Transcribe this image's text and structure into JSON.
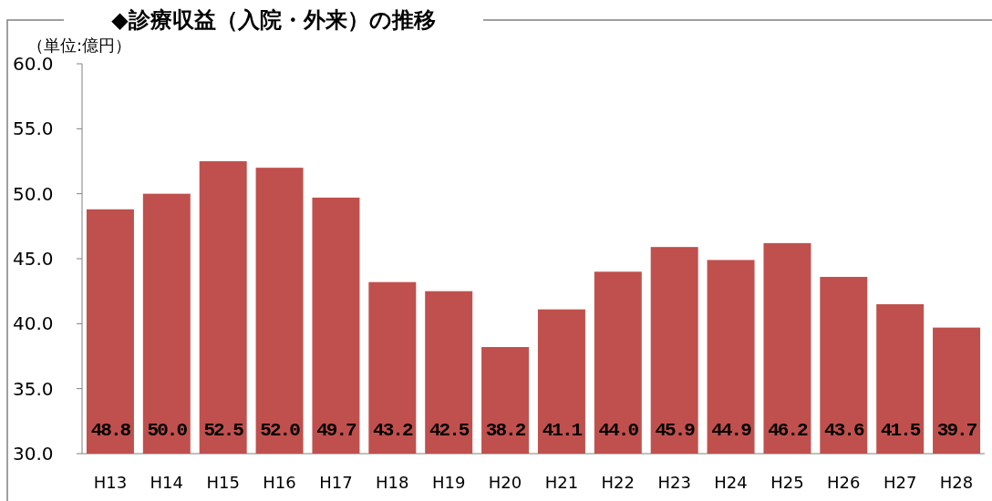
{
  "chart_data": {
    "type": "bar",
    "title": "◆診療収益（入院・外来）の推移",
    "ylabel": "（単位:億円）",
    "categories": [
      "H13",
      "H14",
      "H15",
      "H16",
      "H17",
      "H18",
      "H19",
      "H20",
      "H21",
      "H22",
      "H23",
      "H24",
      "H25",
      "H26",
      "H27",
      "H28"
    ],
    "values": [
      48.8,
      50.0,
      52.5,
      52.0,
      49.7,
      43.2,
      42.5,
      38.2,
      41.1,
      44.0,
      45.9,
      44.9,
      46.2,
      43.6,
      41.5,
      39.7
    ],
    "value_labels": [
      "48.8",
      "50.0",
      "52.5",
      "52.0",
      "49.7",
      "43.2",
      "42.5",
      "38.2",
      "41.1",
      "44.0",
      "45.9",
      "44.9",
      "46.2",
      "43.6",
      "41.5",
      "39.7"
    ],
    "color": "#c0504d",
    "ylim": [
      30,
      60
    ],
    "yticks": [
      {
        "value": 30,
        "label": "30.0"
      },
      {
        "value": 35,
        "label": "35.0"
      },
      {
        "value": 40,
        "label": "40.0"
      },
      {
        "value": 45,
        "label": "45.0"
      },
      {
        "value": 50,
        "label": "50.0"
      },
      {
        "value": 55,
        "label": "55.0"
      },
      {
        "value": 60,
        "label": "60.0"
      }
    ],
    "grid": false
  }
}
